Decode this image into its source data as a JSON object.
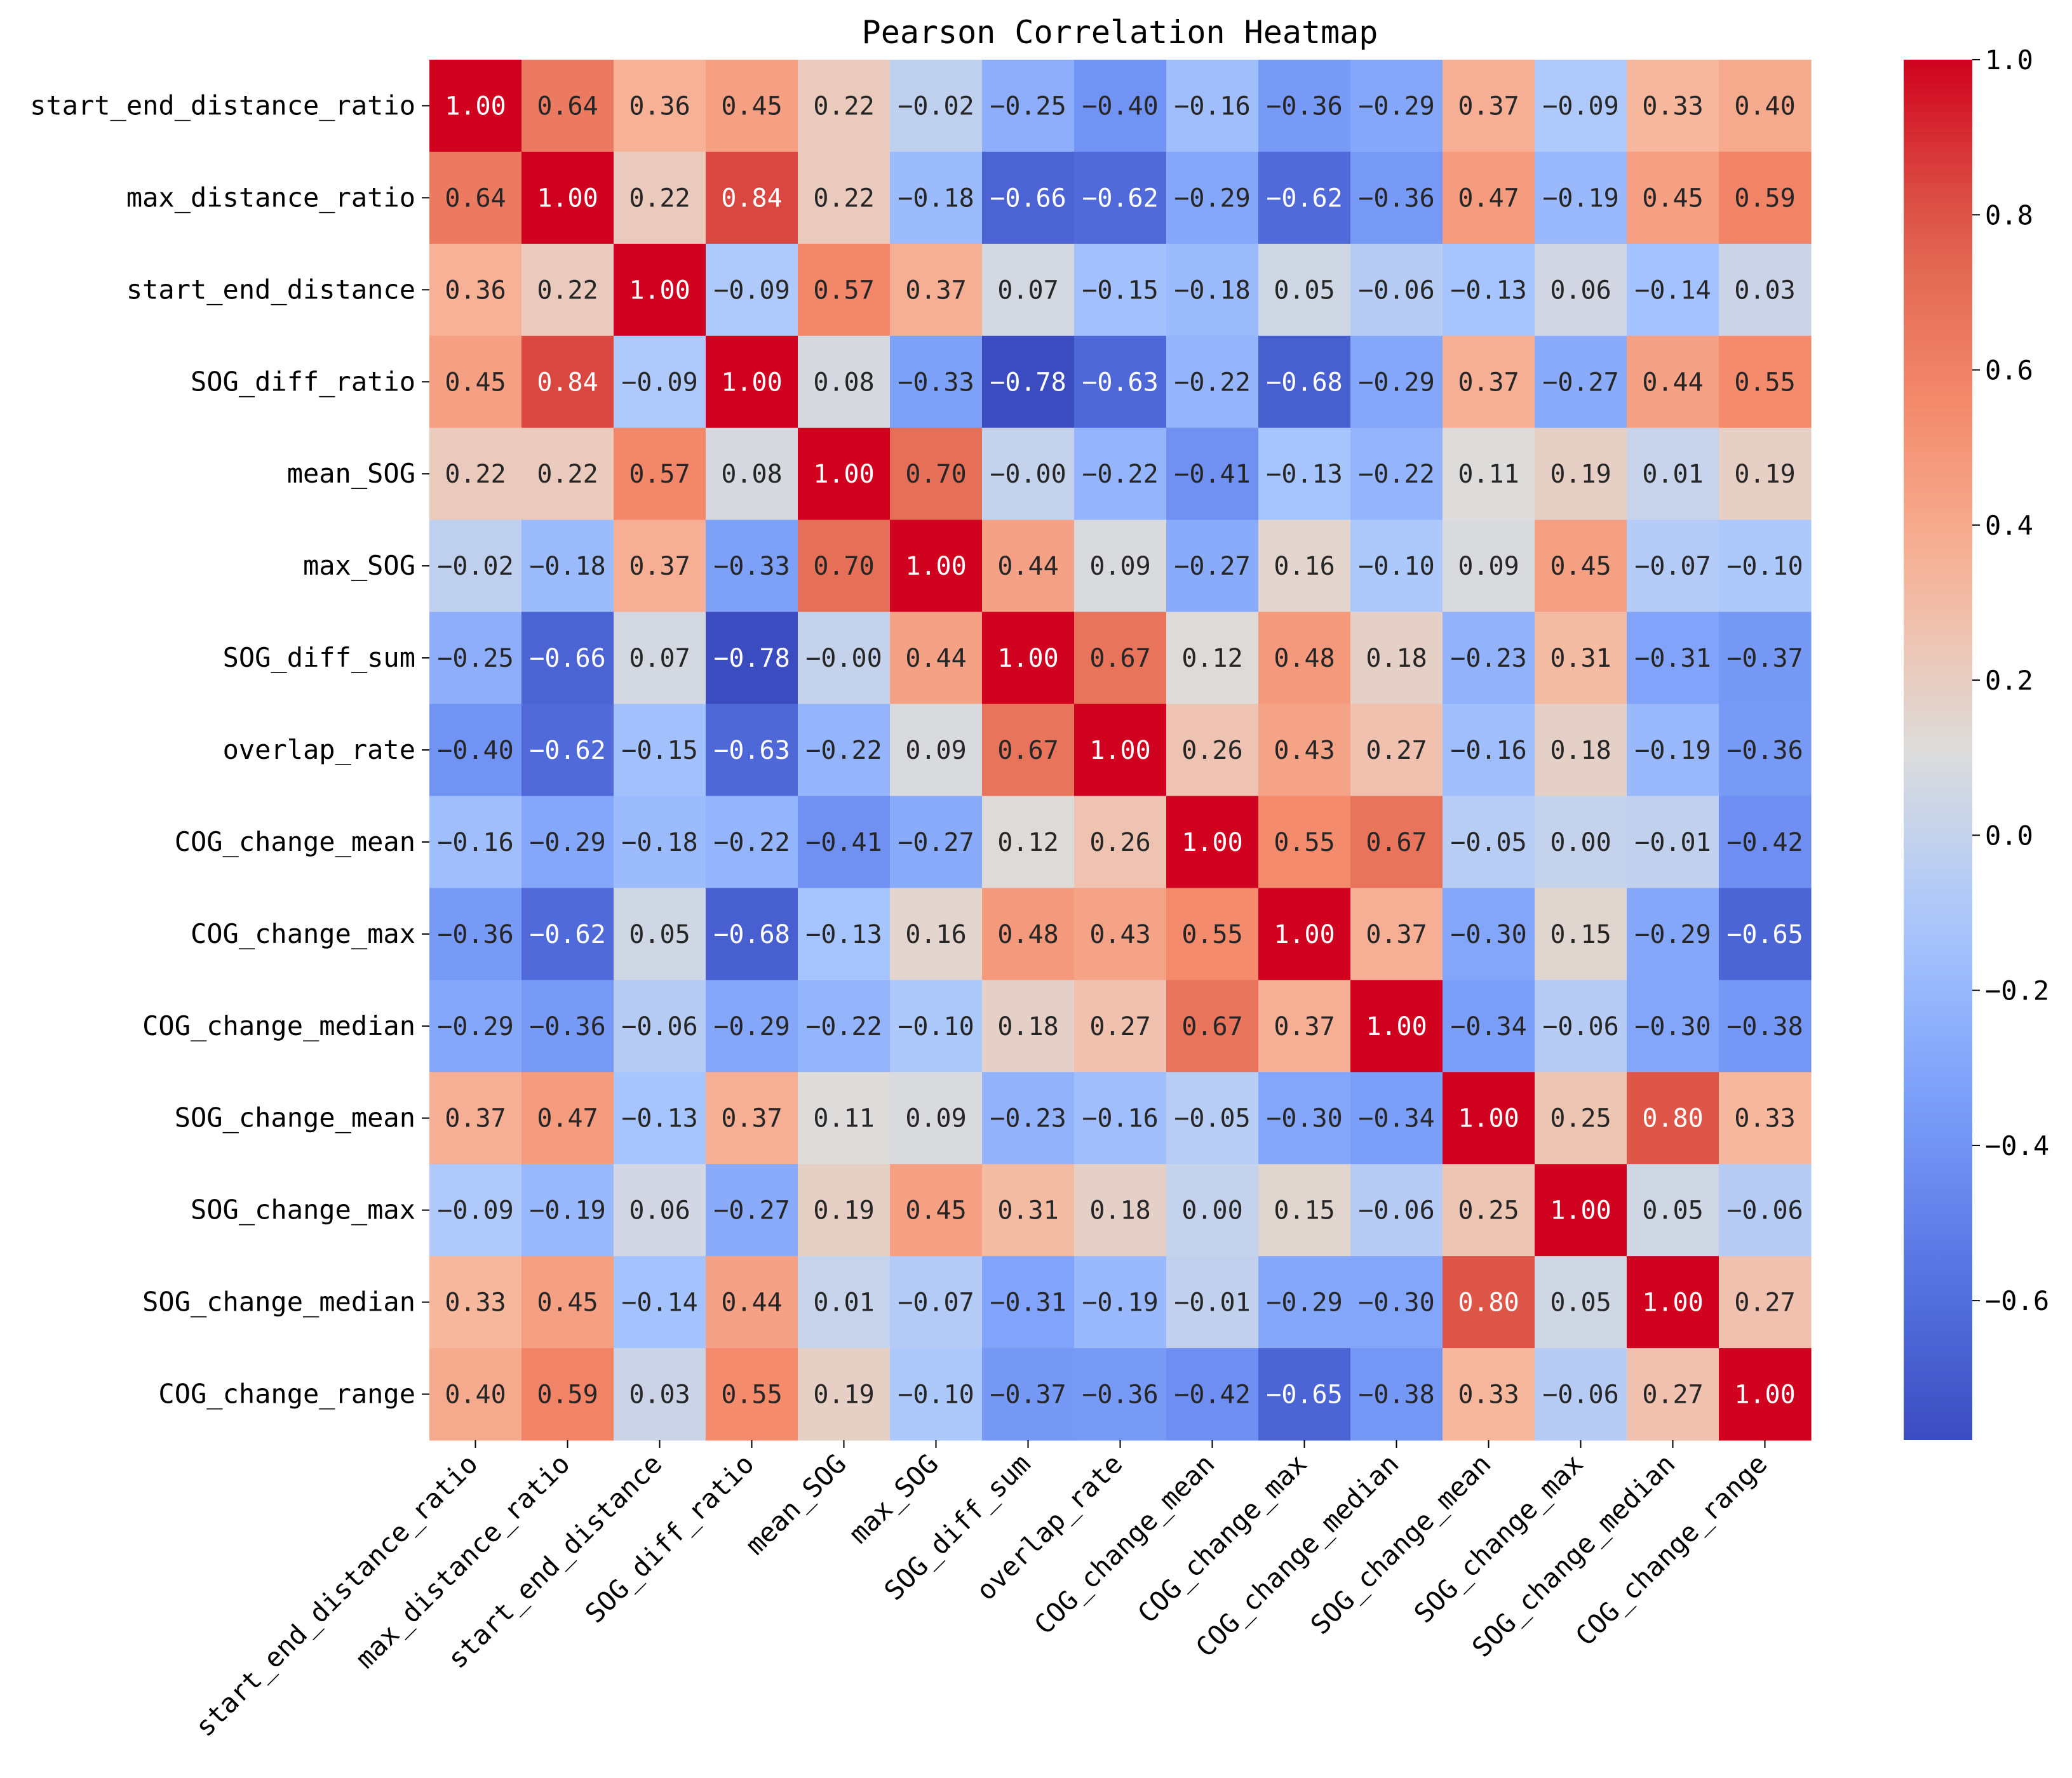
{
  "chart_data": {
    "type": "heatmap",
    "title": "Pearson Correlation Heatmap",
    "labels": [
      "start_end_distance_ratio",
      "max_distance_ratio",
      "start_end_distance",
      "SOG_diff_ratio",
      "mean_SOG",
      "max_SOG",
      "SOG_diff_sum",
      "overlap_rate",
      "COG_change_mean",
      "COG_change_max",
      "COG_change_median",
      "SOG_change_mean",
      "SOG_change_max",
      "SOG_change_median",
      "COG_change_range"
    ],
    "values": [
      [
        1.0,
        0.64,
        0.36,
        0.45,
        0.22,
        -0.02,
        -0.25,
        -0.4,
        -0.16,
        -0.36,
        -0.29,
        0.37,
        -0.09,
        0.33,
        0.4
      ],
      [
        0.64,
        1.0,
        0.22,
        0.84,
        0.22,
        -0.18,
        -0.66,
        -0.62,
        -0.29,
        -0.62,
        -0.36,
        0.47,
        -0.19,
        0.45,
        0.59
      ],
      [
        0.36,
        0.22,
        1.0,
        -0.09,
        0.57,
        0.37,
        0.07,
        -0.15,
        -0.18,
        0.05,
        -0.06,
        -0.13,
        0.06,
        -0.14,
        0.03
      ],
      [
        0.45,
        0.84,
        -0.09,
        1.0,
        0.08,
        -0.33,
        -0.78,
        -0.63,
        -0.22,
        -0.68,
        -0.29,
        0.37,
        -0.27,
        0.44,
        0.55
      ],
      [
        0.22,
        0.22,
        0.57,
        0.08,
        1.0,
        0.7,
        -0.0,
        -0.22,
        -0.41,
        -0.13,
        -0.22,
        0.11,
        0.19,
        0.01,
        0.19
      ],
      [
        -0.02,
        -0.18,
        0.37,
        -0.33,
        0.7,
        1.0,
        0.44,
        0.09,
        -0.27,
        0.16,
        -0.1,
        0.09,
        0.45,
        -0.07,
        -0.1
      ],
      [
        -0.25,
        -0.66,
        0.07,
        -0.78,
        -0.0,
        0.44,
        1.0,
        0.67,
        0.12,
        0.48,
        0.18,
        -0.23,
        0.31,
        -0.31,
        -0.37
      ],
      [
        -0.4,
        -0.62,
        -0.15,
        -0.63,
        -0.22,
        0.09,
        0.67,
        1.0,
        0.26,
        0.43,
        0.27,
        -0.16,
        0.18,
        -0.19,
        -0.36
      ],
      [
        -0.16,
        -0.29,
        -0.18,
        -0.22,
        -0.41,
        -0.27,
        0.12,
        0.26,
        1.0,
        0.55,
        0.67,
        -0.05,
        0.0,
        -0.01,
        -0.42
      ],
      [
        -0.36,
        -0.62,
        0.05,
        -0.68,
        -0.13,
        0.16,
        0.48,
        0.43,
        0.55,
        1.0,
        0.37,
        -0.3,
        0.15,
        -0.29,
        -0.65
      ],
      [
        -0.29,
        -0.36,
        -0.06,
        -0.29,
        -0.22,
        -0.1,
        0.18,
        0.27,
        0.67,
        0.37,
        1.0,
        -0.34,
        -0.06,
        -0.3,
        -0.38
      ],
      [
        0.37,
        0.47,
        -0.13,
        0.37,
        0.11,
        0.09,
        -0.23,
        -0.16,
        -0.05,
        -0.3,
        -0.34,
        1.0,
        0.25,
        0.8,
        0.33
      ],
      [
        -0.09,
        -0.19,
        0.06,
        -0.27,
        0.19,
        0.45,
        0.31,
        0.18,
        0.0,
        0.15,
        -0.06,
        0.25,
        1.0,
        0.05,
        -0.06
      ],
      [
        0.33,
        0.45,
        -0.14,
        0.44,
        0.01,
        -0.07,
        -0.31,
        -0.19,
        -0.01,
        -0.29,
        -0.3,
        0.8,
        0.05,
        1.0,
        0.27
      ],
      [
        0.4,
        0.59,
        0.03,
        0.55,
        0.19,
        -0.1,
        -0.37,
        -0.36,
        -0.42,
        -0.65,
        -0.38,
        0.33,
        -0.06,
        0.27,
        1.0
      ]
    ],
    "colormap": "coolwarm",
    "vmin": -0.78,
    "vmax": 1.0,
    "colorbar_ticks": [
      -0.6,
      -0.4,
      -0.2,
      0.0,
      0.2,
      0.4,
      0.6,
      0.8,
      1.0
    ],
    "colorbar_tick_labels": [
      "−0.6",
      "−0.4",
      "−0.2",
      "0.0",
      "0.2",
      "0.4",
      "0.6",
      "0.8",
      "1.0"
    ],
    "legend": "right"
  }
}
